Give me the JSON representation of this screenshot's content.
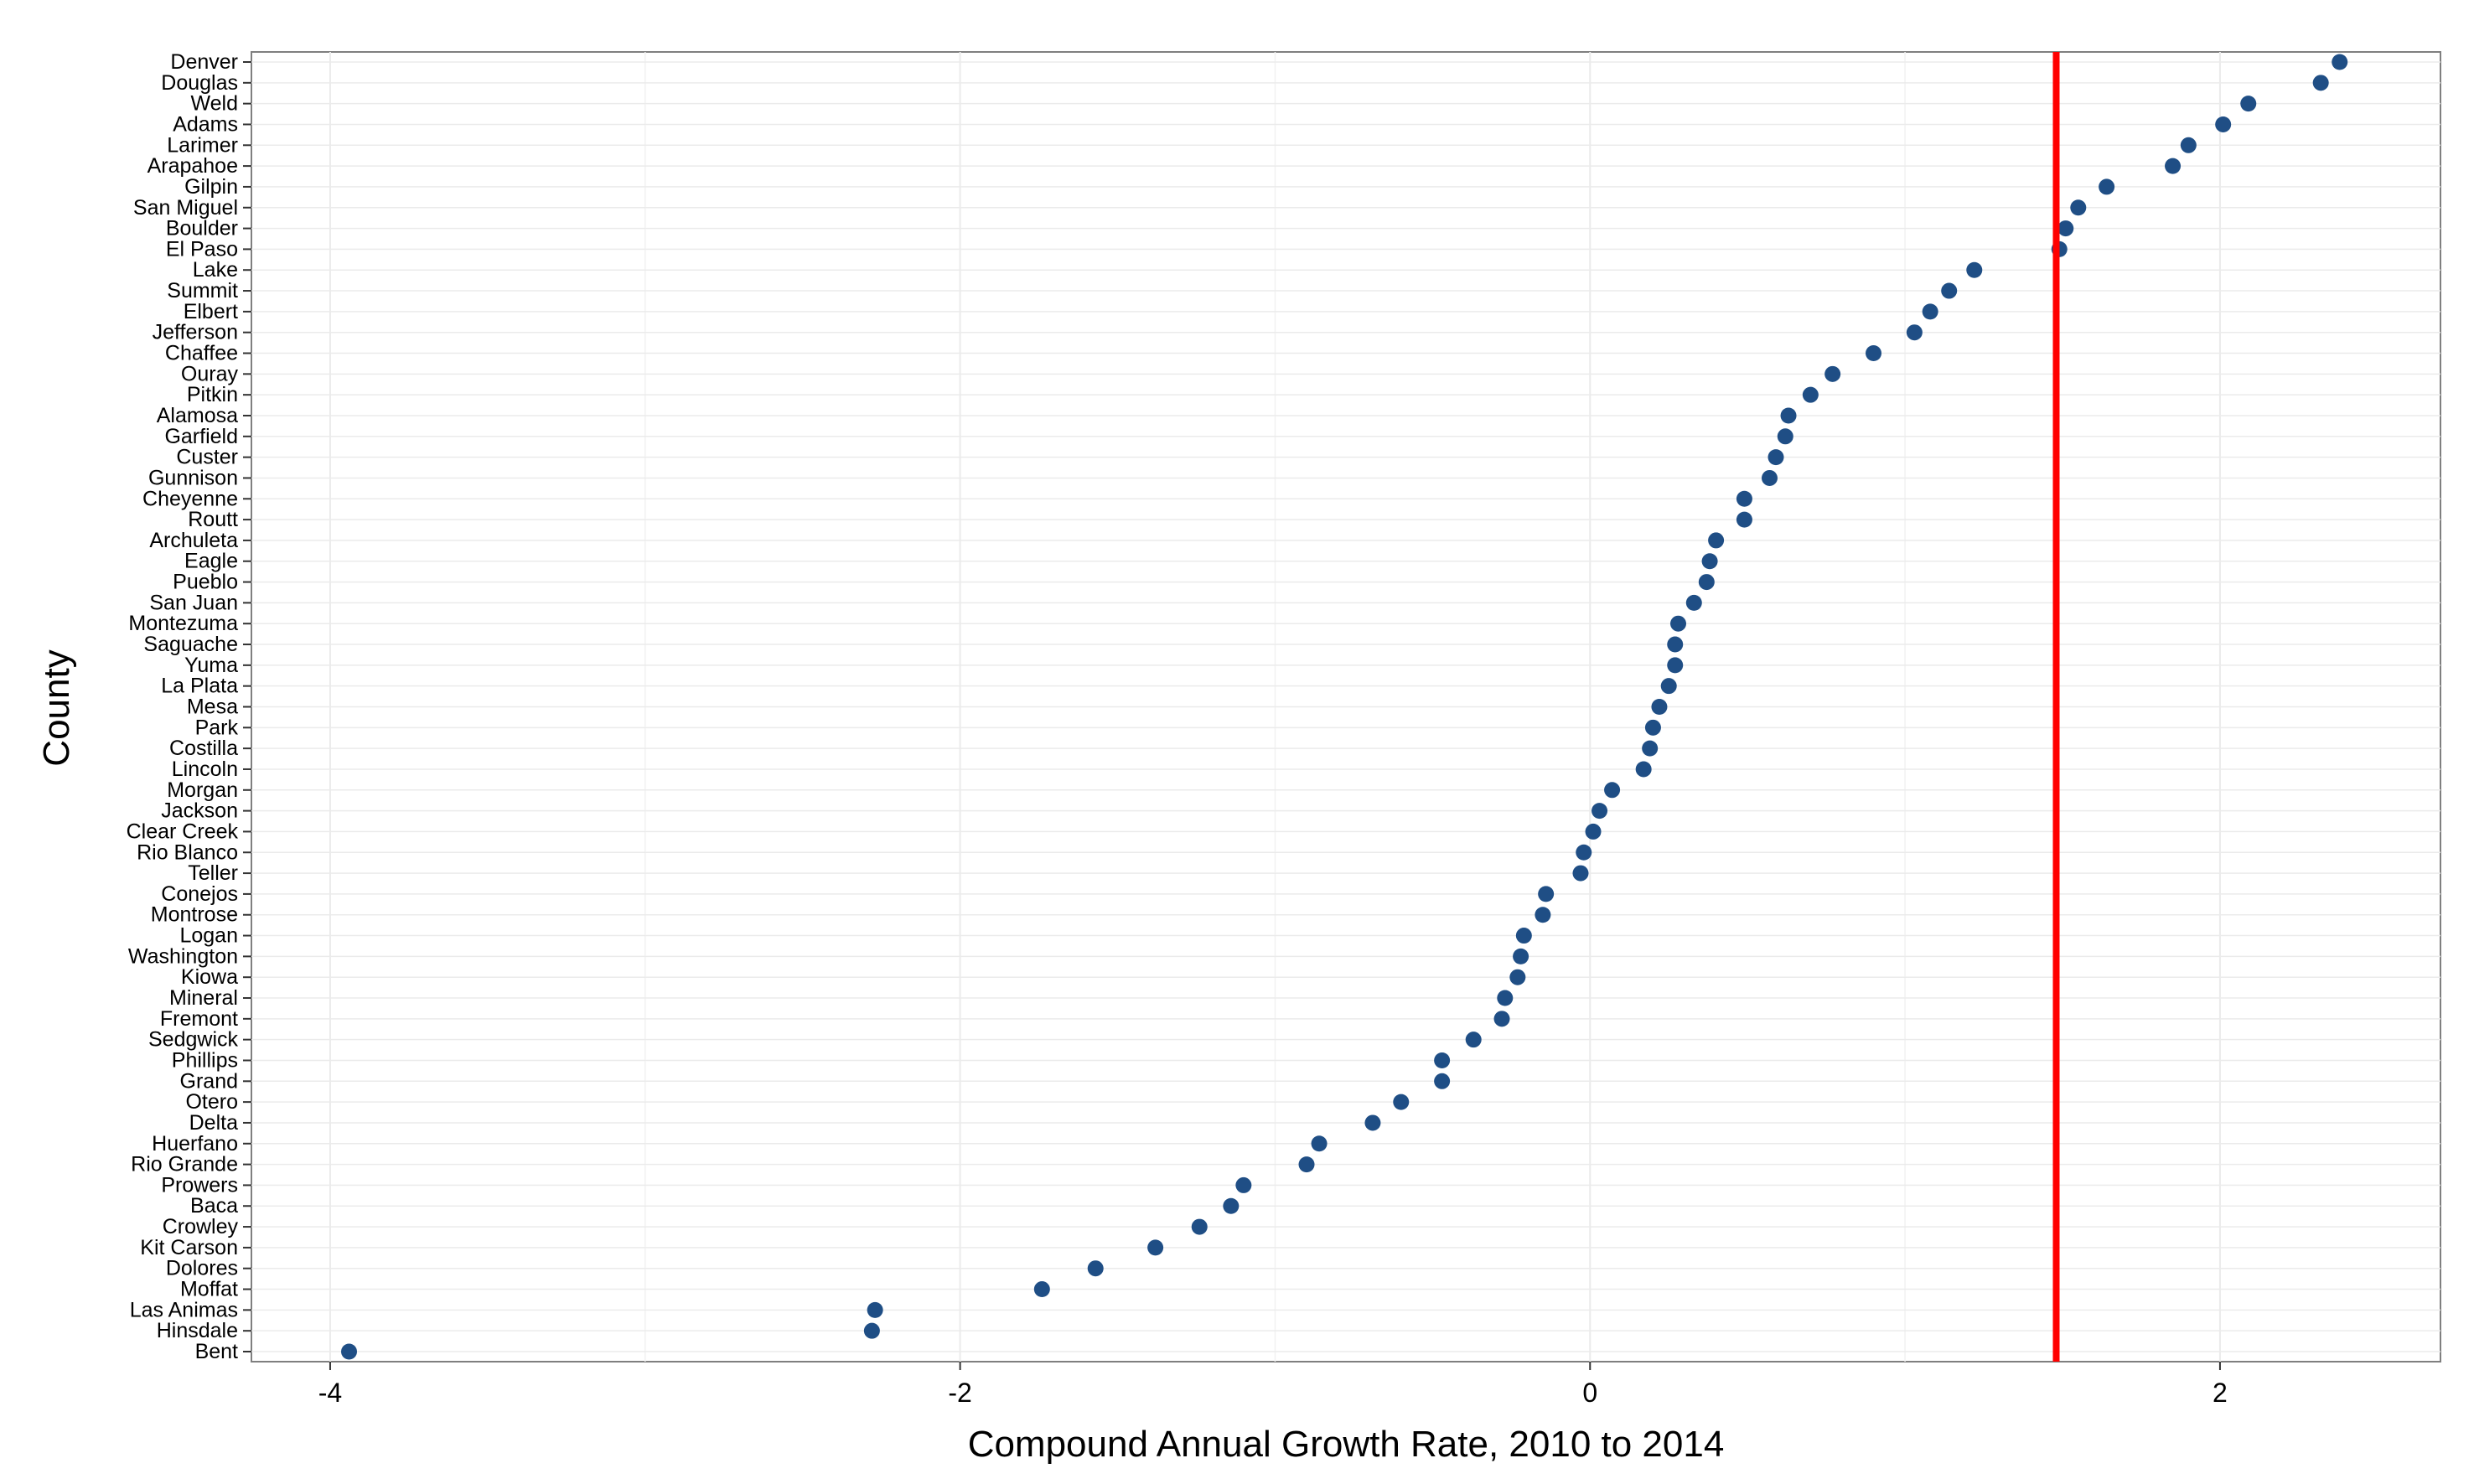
{
  "chart_data": {
    "type": "scatter",
    "title": "",
    "xlabel": "Compound Annual Growth Rate, 2010 to 2014",
    "ylabel": "County",
    "xlim": [
      -4.25,
      2.7
    ],
    "x_ticks": [
      -4,
      -2,
      0,
      2
    ],
    "x_tick_labels": [
      "-4",
      "-2",
      "0",
      "2"
    ],
    "grid": true,
    "legend": "none",
    "point_color": "#1f4e85",
    "reference_line": {
      "x": 1.48,
      "color": "#ff0000"
    },
    "categories": [
      "Denver",
      "Douglas",
      "Weld",
      "Adams",
      "Larimer",
      "Arapahoe",
      "Gilpin",
      "San Miguel",
      "Boulder",
      "El Paso",
      "Lake",
      "Summit",
      "Elbert",
      "Jefferson",
      "Chaffee",
      "Ouray",
      "Pitkin",
      "Alamosa",
      "Garfield",
      "Custer",
      "Gunnison",
      "Cheyenne",
      "Routt",
      "Archuleta",
      "Eagle",
      "Pueblo",
      "San Juan",
      "Montezuma",
      "Saguache",
      "Yuma",
      "La Plata",
      "Mesa",
      "Park",
      "Costilla",
      "Lincoln",
      "Morgan",
      "Jackson",
      "Clear Creek",
      "Rio Blanco",
      "Teller",
      "Conejos",
      "Montrose",
      "Logan",
      "Washington",
      "Kiowa",
      "Mineral",
      "Fremont",
      "Sedgwick",
      "Phillips",
      "Grand",
      "Otero",
      "Delta",
      "Huerfano",
      "Rio Grande",
      "Prowers",
      "Baca",
      "Crowley",
      "Kit Carson",
      "Dolores",
      "Moffat",
      "Las Animas",
      "Hinsdale",
      "Bent"
    ],
    "values": [
      2.38,
      2.32,
      2.09,
      2.01,
      1.9,
      1.85,
      1.64,
      1.55,
      1.51,
      1.49,
      1.22,
      1.14,
      1.08,
      1.03,
      0.9,
      0.77,
      0.7,
      0.63,
      0.62,
      0.59,
      0.57,
      0.49,
      0.49,
      0.4,
      0.38,
      0.37,
      0.33,
      0.28,
      0.27,
      0.27,
      0.25,
      0.22,
      0.2,
      0.19,
      0.17,
      0.07,
      0.03,
      0.01,
      -0.02,
      -0.03,
      -0.14,
      -0.15,
      -0.21,
      -0.22,
      -0.23,
      -0.27,
      -0.28,
      -0.37,
      -0.47,
      -0.47,
      -0.6,
      -0.69,
      -0.86,
      -0.9,
      -1.1,
      -1.14,
      -1.24,
      -1.38,
      -1.57,
      -1.74,
      -2.27,
      -2.28,
      -3.94
    ]
  }
}
